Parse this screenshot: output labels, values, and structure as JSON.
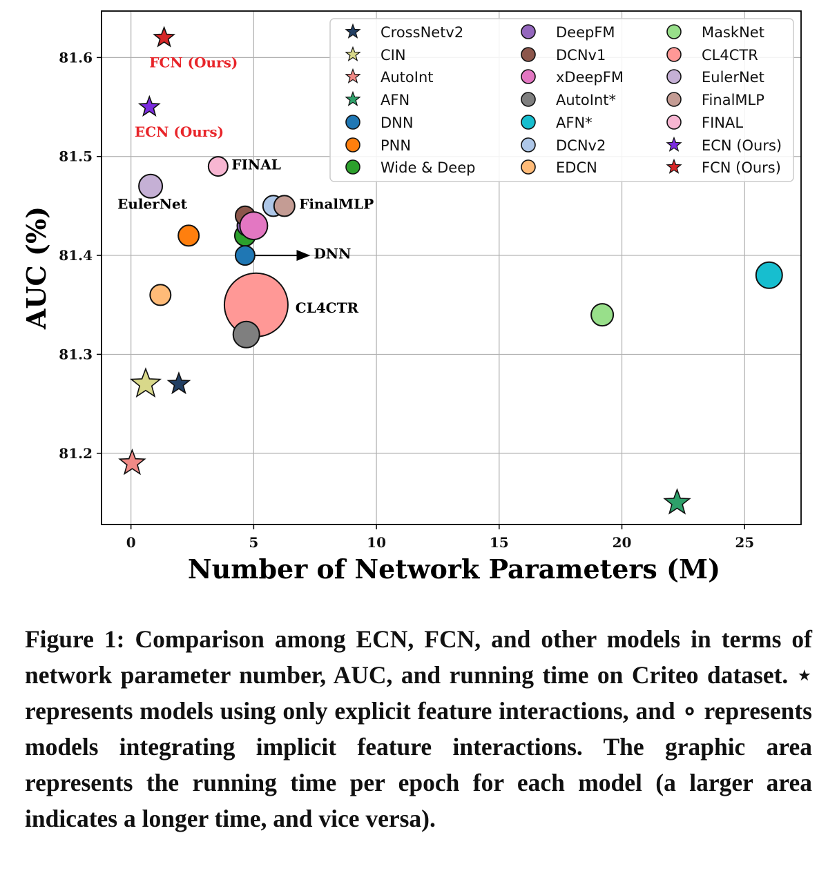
{
  "chart_data": {
    "type": "scatter",
    "title": "",
    "xlabel": "Number of Network Parameters (M)",
    "ylabel": "AUC (%)",
    "xlim": [
      -1.2,
      27.3
    ],
    "ylim": [
      81.128,
      81.647
    ],
    "x_ticks": [
      0,
      5,
      10,
      15,
      20,
      25
    ],
    "y_ticks": [
      81.2,
      81.3,
      81.4,
      81.5,
      81.6
    ],
    "grid": true,
    "legend_position": "top-right",
    "series": [
      {
        "name": "CrossNetv2",
        "marker": "star",
        "color": "#223f63",
        "x": 1.95,
        "y": 81.27,
        "size": 16
      },
      {
        "name": "CIN",
        "marker": "star",
        "color": "#d8d88a",
        "x": 0.6,
        "y": 81.27,
        "size": 22
      },
      {
        "name": "AutoInt",
        "marker": "star",
        "color": "#f08a86",
        "x": 0.05,
        "y": 81.19,
        "size": 19
      },
      {
        "name": "AFN",
        "marker": "star",
        "color": "#2ea06a",
        "x": 22.25,
        "y": 81.15,
        "size": 19
      },
      {
        "name": "DNN",
        "marker": "circle",
        "color": "#1f77b4",
        "x": 4.65,
        "y": 81.4,
        "size": 14
      },
      {
        "name": "PNN",
        "marker": "circle",
        "color": "#ff7f0e",
        "x": 2.35,
        "y": 81.42,
        "size": 15
      },
      {
        "name": "Wide & Deep",
        "marker": "circle",
        "color": "#2ca02c",
        "x": 4.65,
        "y": 81.42,
        "size": 15
      },
      {
        "name": "DeepFM",
        "marker": "circle",
        "color": "#9467bd",
        "x": 4.75,
        "y": 81.43,
        "size": 15
      },
      {
        "name": "DCNv1",
        "marker": "circle",
        "color": "#8c564b",
        "x": 4.65,
        "y": 81.44,
        "size": 14
      },
      {
        "name": "xDeepFM",
        "marker": "circle",
        "color": "#e377c2",
        "x": 5.0,
        "y": 81.43,
        "size": 20
      },
      {
        "name": "AutoInt*",
        "marker": "circle",
        "color": "#7f7f7f",
        "x": 4.7,
        "y": 81.32,
        "size": 19
      },
      {
        "name": "AFN*",
        "marker": "circle",
        "color": "#17becf",
        "x": 26.0,
        "y": 81.38,
        "size": 19
      },
      {
        "name": "DCNv2",
        "marker": "circle",
        "color": "#aec7e8",
        "x": 5.8,
        "y": 81.45,
        "size": 15
      },
      {
        "name": "EDCN",
        "marker": "circle",
        "color": "#ffbb78",
        "x": 1.2,
        "y": 81.36,
        "size": 15
      },
      {
        "name": "MaskNet",
        "marker": "circle",
        "color": "#98df8a",
        "x": 19.2,
        "y": 81.34,
        "size": 16
      },
      {
        "name": "CL4CTR",
        "marker": "circle",
        "color": "#ff9896",
        "x": 5.1,
        "y": 81.35,
        "size": 46
      },
      {
        "name": "EulerNet",
        "marker": "circle",
        "color": "#c5b0d5",
        "x": 0.8,
        "y": 81.47,
        "size": 17
      },
      {
        "name": "FinalMLP",
        "marker": "circle",
        "color": "#c49c94",
        "x": 6.25,
        "y": 81.45,
        "size": 15
      },
      {
        "name": "FINAL",
        "marker": "circle",
        "color": "#f7b6d2",
        "x": 3.55,
        "y": 81.49,
        "size": 14
      },
      {
        "name": "ECN (Ours)",
        "marker": "star",
        "color": "#7b2be0",
        "x": 0.75,
        "y": 81.55,
        "size": 15
      },
      {
        "name": "FCN (Ours)",
        "marker": "star",
        "color": "#d62728",
        "x": 1.35,
        "y": 81.62,
        "size": 15
      }
    ],
    "annotations": [
      {
        "text": "FCN (Ours)",
        "x": 0.75,
        "y": 81.59,
        "color": "#e8252a"
      },
      {
        "text": "ECN (Ours)",
        "x": 0.15,
        "y": 81.52,
        "color": "#e8252a"
      },
      {
        "text": "FINAL",
        "x": 4.1,
        "y": 81.487,
        "color": "#000000"
      },
      {
        "text": "EulerNet",
        "x": -0.55,
        "y": 81.447,
        "color": "#000000"
      },
      {
        "text": "FinalMLP",
        "x": 6.85,
        "y": 81.447,
        "color": "#000000"
      },
      {
        "text": "DNN",
        "x": 7.45,
        "y": 81.397,
        "color": "#000000"
      },
      {
        "text": "CL4CTR",
        "x": 6.7,
        "y": 81.342,
        "color": "#000000"
      }
    ],
    "arrow": {
      "from": [
        5.05,
        81.4
      ],
      "to": [
        7.25,
        81.4
      ]
    }
  },
  "caption": "Figure 1: Comparison among ECN, FCN, and other models in terms of network parameter number, AUC, and running time on Criteo dataset. ⋆ represents models using only explicit feature interactions, and ∘ represents models integrating implicit feature interactions. The graphic area represents the running time per epoch for each model (a larger area indicates a longer time, and vice versa)."
}
